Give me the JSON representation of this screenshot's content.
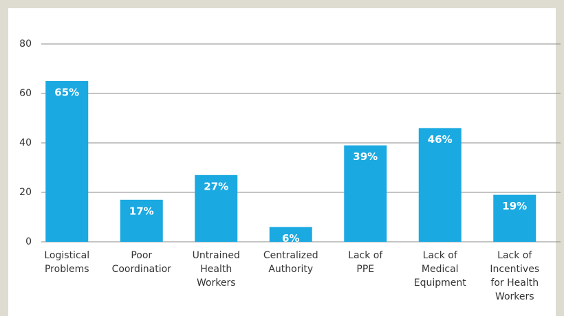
{
  "chart_data": {
    "type": "bar",
    "categories": [
      [
        "Logistical",
        "Problems"
      ],
      [
        "Poor",
        "Coordinatior"
      ],
      [
        "Untrained",
        "Health",
        "Workers"
      ],
      [
        "Centralized",
        "Authority"
      ],
      [
        "Lack of",
        "PPE"
      ],
      [
        "Lack of",
        "Medical",
        "Equipment"
      ],
      [
        "Lack of",
        "Incentives",
        "for Health",
        "Workers"
      ]
    ],
    "values": [
      65,
      17,
      27,
      6,
      39,
      46,
      19
    ],
    "value_labels": [
      "65%",
      "17%",
      "27%",
      "6%",
      "39%",
      "46%",
      "19%"
    ],
    "color": "#1ba9e1",
    "ylim": [
      0,
      80
    ],
    "yticks": [
      0,
      20,
      40,
      60,
      80
    ],
    "grid": true
  }
}
